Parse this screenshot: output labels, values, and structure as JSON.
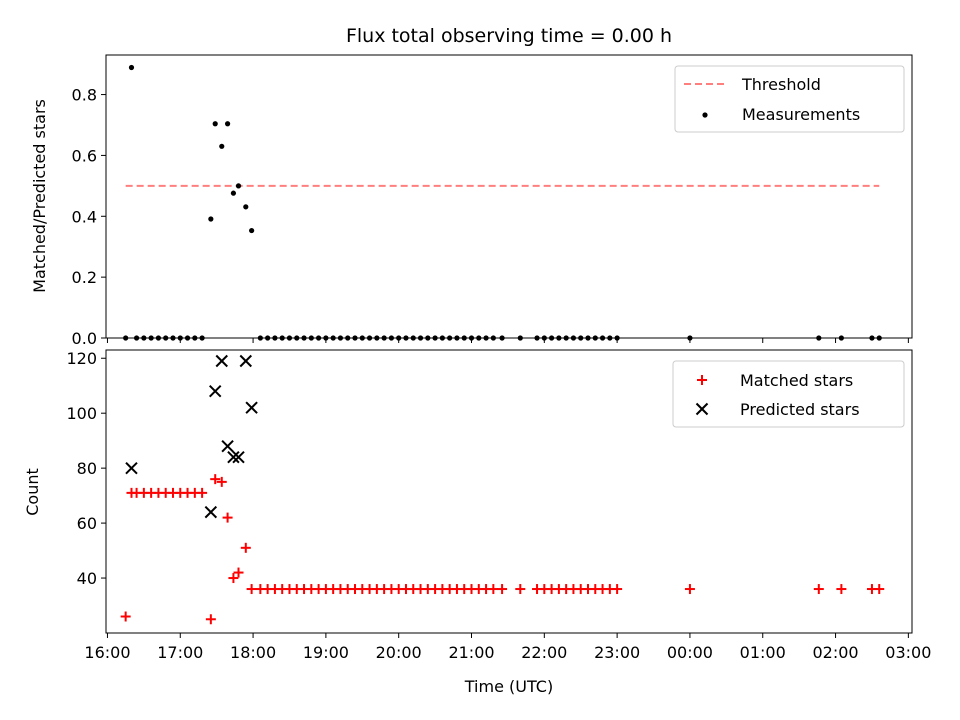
{
  "chart_data": [
    {
      "type": "scatter",
      "title": "Flux total observing time = 0.00 h",
      "xlabel": "",
      "ylabel": "Matched/Predicted stars",
      "x_unit": "hours after 16:00 UTC",
      "xlim": [
        15.98,
        27.05
      ],
      "ylim": [
        0,
        0.93
      ],
      "yticks": [
        0.0,
        0.2,
        0.4,
        0.6,
        0.8
      ],
      "ytick_labels": [
        "0.0",
        "0.2",
        "0.4",
        "0.6",
        "0.8"
      ],
      "legend": {
        "position": "top-right",
        "entries": [
          "Threshold",
          "Measurements"
        ]
      },
      "threshold": {
        "name": "Threshold",
        "color": "#ff7f7f",
        "value": 0.5,
        "x_range": [
          16.25,
          26.6
        ]
      },
      "series": [
        {
          "name": "Measurements",
          "color": "#000000",
          "points": [
            [
              16.25,
              0.0
            ],
            [
              16.33,
              0.889
            ],
            [
              16.4,
              0.0
            ],
            [
              16.5,
              0.0
            ],
            [
              16.6,
              0.0
            ],
            [
              16.7,
              0.0
            ],
            [
              16.8,
              0.0
            ],
            [
              16.9,
              0.0
            ],
            [
              17.0,
              0.0
            ],
            [
              17.1,
              0.0
            ],
            [
              17.2,
              0.0
            ],
            [
              17.3,
              0.0
            ],
            [
              17.42,
              0.391
            ],
            [
              17.48,
              0.704
            ],
            [
              17.57,
              0.63
            ],
            [
              17.65,
              0.704
            ],
            [
              17.73,
              0.476
            ],
            [
              17.8,
              0.5
            ],
            [
              17.9,
              0.431
            ],
            [
              17.98,
              0.353
            ],
            [
              18.1,
              0.0
            ],
            [
              18.2,
              0.0
            ],
            [
              18.3,
              0.0
            ],
            [
              18.4,
              0.0
            ],
            [
              18.5,
              0.0
            ],
            [
              18.6,
              0.0
            ],
            [
              18.7,
              0.0
            ],
            [
              18.8,
              0.0
            ],
            [
              18.9,
              0.0
            ],
            [
              19.0,
              0.0
            ],
            [
              19.1,
              0.0
            ],
            [
              19.2,
              0.0
            ],
            [
              19.3,
              0.0
            ],
            [
              19.4,
              0.0
            ],
            [
              19.5,
              0.0
            ],
            [
              19.6,
              0.0
            ],
            [
              19.7,
              0.0
            ],
            [
              19.8,
              0.0
            ],
            [
              19.9,
              0.0
            ],
            [
              20.0,
              0.0
            ],
            [
              20.1,
              0.0
            ],
            [
              20.2,
              0.0
            ],
            [
              20.3,
              0.0
            ],
            [
              20.4,
              0.0
            ],
            [
              20.5,
              0.0
            ],
            [
              20.6,
              0.0
            ],
            [
              20.7,
              0.0
            ],
            [
              20.8,
              0.0
            ],
            [
              20.9,
              0.0
            ],
            [
              21.0,
              0.0
            ],
            [
              21.1,
              0.0
            ],
            [
              21.2,
              0.0
            ],
            [
              21.3,
              0.0
            ],
            [
              21.42,
              0.0
            ],
            [
              21.67,
              0.0
            ],
            [
              21.9,
              0.0
            ],
            [
              22.0,
              0.0
            ],
            [
              22.1,
              0.0
            ],
            [
              22.2,
              0.0
            ],
            [
              22.3,
              0.0
            ],
            [
              22.4,
              0.0
            ],
            [
              22.5,
              0.0
            ],
            [
              22.6,
              0.0
            ],
            [
              22.7,
              0.0
            ],
            [
              22.8,
              0.0
            ],
            [
              22.9,
              0.0
            ],
            [
              23.0,
              0.0
            ],
            [
              24.0,
              0.0
            ],
            [
              25.77,
              0.0
            ],
            [
              26.08,
              0.0
            ],
            [
              26.5,
              0.0
            ],
            [
              26.6,
              0.0
            ]
          ]
        }
      ]
    },
    {
      "type": "scatter",
      "title": "",
      "xlabel": "Time (UTC)",
      "ylabel": "Count",
      "x_unit": "hours after 16:00 UTC",
      "xlim": [
        15.98,
        27.05
      ],
      "ylim": [
        20,
        123
      ],
      "yticks": [
        40,
        60,
        80,
        100,
        120
      ],
      "ytick_labels": [
        "40",
        "60",
        "80",
        "100",
        "120"
      ],
      "xticks": [
        16,
        17,
        18,
        19,
        20,
        21,
        22,
        23,
        24,
        25,
        26,
        27
      ],
      "xtick_labels": [
        "16:00",
        "17:00",
        "18:00",
        "19:00",
        "20:00",
        "21:00",
        "22:00",
        "23:00",
        "00:00",
        "01:00",
        "02:00",
        "03:00"
      ],
      "legend": {
        "position": "top-right",
        "entries": [
          "Matched stars",
          "Predicted stars"
        ]
      },
      "series": [
        {
          "name": "Matched stars",
          "color": "#ff0000",
          "marker": "plus",
          "points": [
            [
              16.25,
              26
            ],
            [
              16.33,
              71
            ],
            [
              16.4,
              71
            ],
            [
              16.5,
              71
            ],
            [
              16.6,
              71
            ],
            [
              16.7,
              71
            ],
            [
              16.8,
              71
            ],
            [
              16.9,
              71
            ],
            [
              17.0,
              71
            ],
            [
              17.1,
              71
            ],
            [
              17.2,
              71
            ],
            [
              17.3,
              71
            ],
            [
              17.42,
              25
            ],
            [
              17.48,
              76
            ],
            [
              17.57,
              75
            ],
            [
              17.65,
              62
            ],
            [
              17.73,
              40
            ],
            [
              17.8,
              42
            ],
            [
              17.9,
              51
            ],
            [
              17.98,
              36
            ],
            [
              18.1,
              36
            ],
            [
              18.2,
              36
            ],
            [
              18.3,
              36
            ],
            [
              18.4,
              36
            ],
            [
              18.5,
              36
            ],
            [
              18.6,
              36
            ],
            [
              18.7,
              36
            ],
            [
              18.8,
              36
            ],
            [
              18.9,
              36
            ],
            [
              19.0,
              36
            ],
            [
              19.1,
              36
            ],
            [
              19.2,
              36
            ],
            [
              19.3,
              36
            ],
            [
              19.4,
              36
            ],
            [
              19.5,
              36
            ],
            [
              19.6,
              36
            ],
            [
              19.7,
              36
            ],
            [
              19.8,
              36
            ],
            [
              19.9,
              36
            ],
            [
              20.0,
              36
            ],
            [
              20.1,
              36
            ],
            [
              20.2,
              36
            ],
            [
              20.3,
              36
            ],
            [
              20.4,
              36
            ],
            [
              20.5,
              36
            ],
            [
              20.6,
              36
            ],
            [
              20.7,
              36
            ],
            [
              20.8,
              36
            ],
            [
              20.9,
              36
            ],
            [
              21.0,
              36
            ],
            [
              21.1,
              36
            ],
            [
              21.2,
              36
            ],
            [
              21.3,
              36
            ],
            [
              21.42,
              36
            ],
            [
              21.67,
              36
            ],
            [
              21.9,
              36
            ],
            [
              22.0,
              36
            ],
            [
              22.1,
              36
            ],
            [
              22.2,
              36
            ],
            [
              22.3,
              36
            ],
            [
              22.4,
              36
            ],
            [
              22.5,
              36
            ],
            [
              22.6,
              36
            ],
            [
              22.7,
              36
            ],
            [
              22.8,
              36
            ],
            [
              22.9,
              36
            ],
            [
              23.0,
              36
            ],
            [
              24.0,
              36
            ],
            [
              25.77,
              36
            ],
            [
              26.08,
              36
            ],
            [
              26.5,
              36
            ],
            [
              26.6,
              36
            ]
          ]
        },
        {
          "name": "Predicted stars",
          "color": "#000000",
          "marker": "x",
          "points": [
            [
              16.33,
              80
            ],
            [
              17.42,
              64
            ],
            [
              17.48,
              108
            ],
            [
              17.57,
              119
            ],
            [
              17.65,
              88
            ],
            [
              17.73,
              84
            ],
            [
              17.8,
              84
            ],
            [
              17.9,
              119
            ],
            [
              17.98,
              102
            ]
          ]
        }
      ]
    }
  ]
}
